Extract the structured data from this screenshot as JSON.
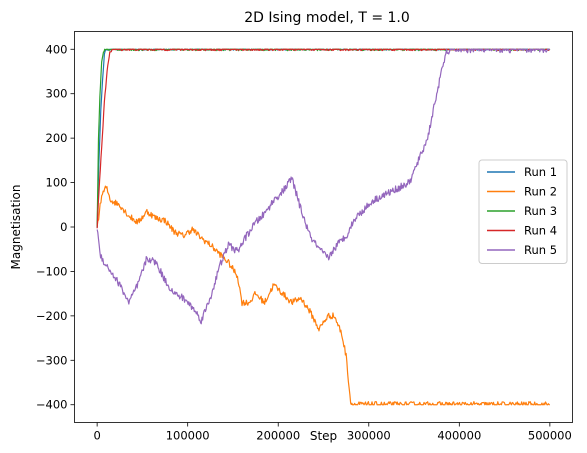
{
  "chart_data": {
    "type": "line",
    "title": "2D Ising model, T = 1.0",
    "xlabel": "Step",
    "ylabel": "Magnetisation",
    "xlim": [
      -25000,
      525000
    ],
    "ylim": [
      -440,
      440
    ],
    "xticks": [
      0,
      100000,
      200000,
      300000,
      400000,
      500000
    ],
    "xtick_labels": [
      "0",
      "100000",
      "200000",
      "300000",
      "400000",
      "500000"
    ],
    "yticks": [
      -400,
      -300,
      -200,
      -100,
      0,
      100,
      200,
      300,
      400
    ],
    "ytick_labels": [
      "−400",
      "−300",
      "−200",
      "−100",
      "0",
      "100",
      "200",
      "300",
      "400"
    ],
    "grid": false,
    "legend_position": "center-right",
    "series": [
      {
        "name": "Run 1",
        "color": "#1f77b4",
        "noise": 2,
        "points": [
          [
            0,
            0
          ],
          [
            2000,
            150
          ],
          [
            4000,
            260
          ],
          [
            6000,
            330
          ],
          [
            8000,
            390
          ],
          [
            10000,
            400
          ],
          [
            500000,
            400
          ]
        ]
      },
      {
        "name": "Run 2",
        "color": "#ff7f0e",
        "noise": 7,
        "points": [
          [
            0,
            0
          ],
          [
            5000,
            70
          ],
          [
            10000,
            90
          ],
          [
            15000,
            60
          ],
          [
            25000,
            50
          ],
          [
            35000,
            25
          ],
          [
            45000,
            10
          ],
          [
            55000,
            35
          ],
          [
            65000,
            20
          ],
          [
            75000,
            15
          ],
          [
            85000,
            -10
          ],
          [
            95000,
            -20
          ],
          [
            105000,
            -5
          ],
          [
            115000,
            -25
          ],
          [
            125000,
            -40
          ],
          [
            135000,
            -60
          ],
          [
            145000,
            -80
          ],
          [
            155000,
            -110
          ],
          [
            160000,
            -170
          ],
          [
            168000,
            -170
          ],
          [
            175000,
            -150
          ],
          [
            185000,
            -170
          ],
          [
            195000,
            -130
          ],
          [
            205000,
            -150
          ],
          [
            215000,
            -170
          ],
          [
            225000,
            -160
          ],
          [
            235000,
            -190
          ],
          [
            245000,
            -230
          ],
          [
            255000,
            -200
          ],
          [
            262000,
            -200
          ],
          [
            270000,
            -240
          ],
          [
            275000,
            -290
          ],
          [
            280000,
            -395
          ],
          [
            282000,
            -400
          ],
          [
            500000,
            -400
          ]
        ]
      },
      {
        "name": "Run 3",
        "color": "#2ca02c",
        "noise": 3,
        "points": [
          [
            0,
            0
          ],
          [
            1500,
            200
          ],
          [
            3000,
            290
          ],
          [
            5000,
            370
          ],
          [
            7000,
            395
          ],
          [
            9000,
            400
          ],
          [
            500000,
            400
          ]
        ]
      },
      {
        "name": "Run 4",
        "color": "#d62728",
        "noise": 3,
        "points": [
          [
            0,
            0
          ],
          [
            2000,
            80
          ],
          [
            5000,
            180
          ],
          [
            8000,
            280
          ],
          [
            11000,
            350
          ],
          [
            14000,
            395
          ],
          [
            18000,
            400
          ],
          [
            500000,
            400
          ]
        ]
      },
      {
        "name": "Run 5",
        "color": "#9467bd",
        "noise": 8,
        "points": [
          [
            0,
            0
          ],
          [
            3000,
            -60
          ],
          [
            8000,
            -80
          ],
          [
            15000,
            -100
          ],
          [
            25000,
            -130
          ],
          [
            35000,
            -170
          ],
          [
            45000,
            -130
          ],
          [
            55000,
            -70
          ],
          [
            65000,
            -80
          ],
          [
            75000,
            -120
          ],
          [
            85000,
            -150
          ],
          [
            95000,
            -160
          ],
          [
            105000,
            -180
          ],
          [
            115000,
            -210
          ],
          [
            125000,
            -160
          ],
          [
            135000,
            -90
          ],
          [
            145000,
            -40
          ],
          [
            155000,
            -55
          ],
          [
            165000,
            -20
          ],
          [
            175000,
            10
          ],
          [
            185000,
            30
          ],
          [
            195000,
            60
          ],
          [
            205000,
            80
          ],
          [
            215000,
            110
          ],
          [
            225000,
            40
          ],
          [
            235000,
            -20
          ],
          [
            245000,
            -50
          ],
          [
            255000,
            -70
          ],
          [
            265000,
            -40
          ],
          [
            275000,
            -20
          ],
          [
            285000,
            20
          ],
          [
            295000,
            40
          ],
          [
            305000,
            60
          ],
          [
            315000,
            70
          ],
          [
            325000,
            80
          ],
          [
            335000,
            90
          ],
          [
            345000,
            100
          ],
          [
            355000,
            150
          ],
          [
            365000,
            200
          ],
          [
            375000,
            300
          ],
          [
            385000,
            390
          ],
          [
            390000,
            400
          ],
          [
            500000,
            400
          ]
        ]
      }
    ]
  }
}
